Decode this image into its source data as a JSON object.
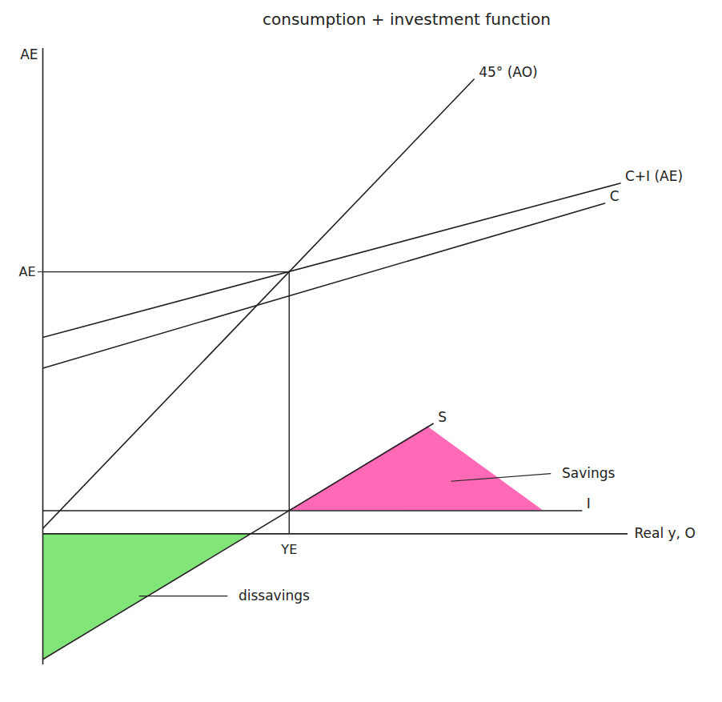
{
  "chart_data": {
    "type": "line",
    "title": "consumption + investment function",
    "x_label": "Real y, O",
    "y_label": "AE",
    "xlim": [
      0,
      76
    ],
    "ylim": [
      -17,
      63
    ],
    "xticks": [
      {
        "value": 32,
        "label": "YE"
      }
    ],
    "yticks": [
      {
        "value": 34,
        "label": "AE"
      }
    ],
    "grid": false,
    "series": [
      {
        "name": "45° (AO)",
        "color": "#222222",
        "x": [
          0,
          56
        ],
        "values": [
          0.7,
          59
        ]
      },
      {
        "name": "C+I (AE)",
        "color": "#222222",
        "x": [
          0,
          75
        ],
        "values": [
          25.5,
          45.5
        ]
      },
      {
        "name": "C",
        "color": "#222222",
        "x": [
          0,
          73
        ],
        "values": [
          21.5,
          42.9
        ]
      },
      {
        "name": "S",
        "color": "#222222",
        "x": [
          0,
          50.7
        ],
        "values": [
          -16.3,
          14.3
        ]
      },
      {
        "name": "I",
        "color": "#222222",
        "x": [
          0,
          70
        ],
        "values": [
          3,
          3
        ]
      }
    ],
    "regions": [
      {
        "label": "Savings",
        "color": "#ff4fa8",
        "x": [
          32,
          50,
          65
        ],
        "lower": [
          3,
          3,
          3
        ],
        "upper": [
          3,
          13.9,
          3
        ]
      },
      {
        "label": "dissavings",
        "color": "#6be05f",
        "x": [
          0,
          27
        ],
        "lower": [
          -16.3,
          0
        ],
        "upper": [
          0,
          0
        ]
      }
    ]
  }
}
